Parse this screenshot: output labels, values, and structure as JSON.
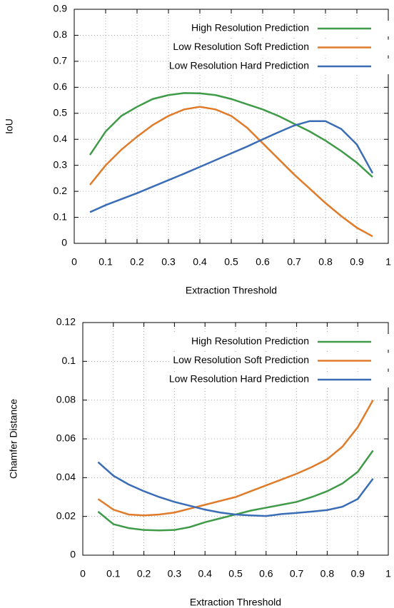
{
  "chart_data": [
    {
      "type": "line",
      "x_label": "Extraction Threshold",
      "y_label": "IoU",
      "x": [
        0.05,
        0.1,
        0.15,
        0.2,
        0.25,
        0.3,
        0.35,
        0.4,
        0.45,
        0.5,
        0.55,
        0.6,
        0.65,
        0.7,
        0.75,
        0.8,
        0.85,
        0.9,
        0.95
      ],
      "series": [
        {
          "name": "High Resolution Prediction",
          "color": "#3f9b48",
          "values": [
            0.34,
            0.43,
            0.49,
            0.525,
            0.555,
            0.57,
            0.578,
            0.577,
            0.57,
            0.555,
            0.535,
            0.515,
            0.49,
            0.46,
            0.43,
            0.395,
            0.355,
            0.31,
            0.255
          ]
        },
        {
          "name": "Low Resolution Soft Prediction",
          "color": "#e07b2a",
          "values": [
            0.225,
            0.3,
            0.36,
            0.41,
            0.455,
            0.49,
            0.515,
            0.525,
            0.515,
            0.49,
            0.445,
            0.385,
            0.325,
            0.265,
            0.21,
            0.155,
            0.105,
            0.06,
            0.027
          ]
        },
        {
          "name": "Low Resolution Hard Prediction",
          "color": "#3a6db5",
          "values": [
            0.12,
            0.147,
            0.17,
            0.193,
            0.218,
            0.243,
            0.268,
            0.294,
            0.32,
            0.346,
            0.372,
            0.4,
            0.427,
            0.453,
            0.47,
            0.47,
            0.44,
            0.38,
            0.27
          ]
        }
      ],
      "xlim": [
        0,
        1
      ],
      "xticks": [
        0,
        0.1,
        0.2,
        0.3,
        0.4,
        0.5,
        0.6,
        0.7,
        0.8,
        0.9,
        1
      ],
      "ylim": [
        0,
        0.9
      ],
      "yticks": [
        0,
        0.1,
        0.2,
        0.3,
        0.4,
        0.5,
        0.6,
        0.7,
        0.8,
        0.9
      ],
      "grid": true,
      "legend": "top-right"
    },
    {
      "type": "line",
      "x_label": "Extraction Threshold",
      "y_label": "Chamfer Distance",
      "x": [
        0.05,
        0.1,
        0.15,
        0.2,
        0.25,
        0.3,
        0.35,
        0.4,
        0.45,
        0.5,
        0.55,
        0.6,
        0.65,
        0.7,
        0.75,
        0.8,
        0.85,
        0.9,
        0.95
      ],
      "series": [
        {
          "name": "High Resolution Prediction",
          "color": "#3f9b48",
          "values": [
            0.0225,
            0.016,
            0.014,
            0.013,
            0.0128,
            0.013,
            0.0145,
            0.017,
            0.019,
            0.021,
            0.023,
            0.0245,
            0.026,
            0.0275,
            0.03,
            0.033,
            0.037,
            0.043,
            0.054
          ]
        },
        {
          "name": "Low Resolution Soft Prediction",
          "color": "#e07b2a",
          "values": [
            0.029,
            0.0235,
            0.021,
            0.0205,
            0.021,
            0.022,
            0.024,
            0.026,
            0.028,
            0.03,
            0.033,
            0.036,
            0.039,
            0.042,
            0.0455,
            0.0495,
            0.056,
            0.066,
            0.08
          ]
        },
        {
          "name": "Low Resolution Hard Prediction",
          "color": "#3a6db5",
          "values": [
            0.048,
            0.041,
            0.0365,
            0.033,
            0.03,
            0.0275,
            0.0255,
            0.0235,
            0.022,
            0.021,
            0.0205,
            0.0202,
            0.0212,
            0.0218,
            0.0225,
            0.0233,
            0.025,
            0.029,
            0.0395
          ]
        }
      ],
      "xlim": [
        0,
        1
      ],
      "xticks": [
        0,
        0.1,
        0.2,
        0.3,
        0.4,
        0.5,
        0.6,
        0.7,
        0.8,
        0.9,
        1
      ],
      "ylim": [
        0,
        0.12
      ],
      "yticks": [
        0,
        0.02,
        0.04,
        0.06,
        0.08,
        0.1,
        0.12
      ],
      "grid": true,
      "legend": "top-right"
    }
  ]
}
